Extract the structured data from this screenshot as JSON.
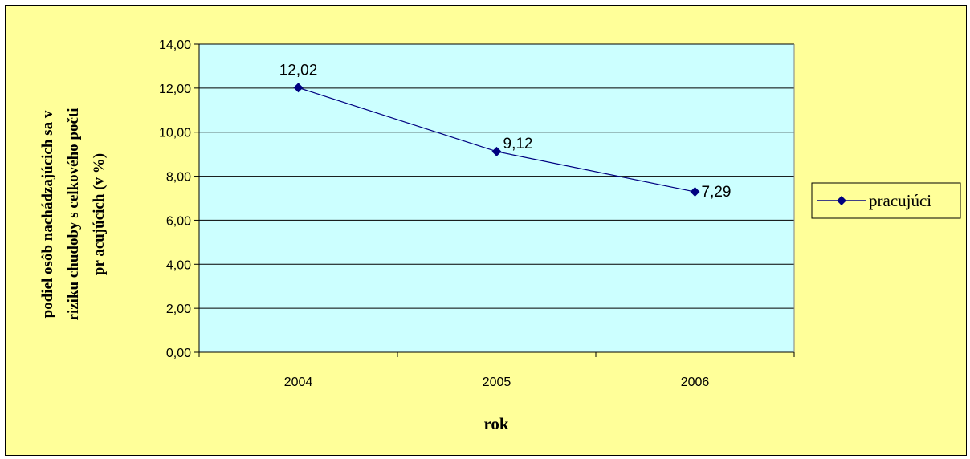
{
  "chart_data": {
    "type": "line",
    "title": "",
    "xlabel": "rok",
    "ylabel_lines": [
      "podiel osôb nachádzajúcich sa v",
      "riziku chudoby s celkového počti",
      "pr acujúcich (v %)"
    ],
    "categories": [
      "2004",
      "2005",
      "2006"
    ],
    "series": [
      {
        "name": "pracujúci",
        "values": [
          12.02,
          9.12,
          7.29
        ],
        "data_labels": [
          "12,02",
          "9,12",
          "7,29"
        ]
      }
    ],
    "ylim": [
      0,
      14
    ],
    "y_ticks": [
      "0,00",
      "2,00",
      "4,00",
      "6,00",
      "8,00",
      "10,00",
      "12,00",
      "14,00"
    ],
    "grid": true,
    "legend": "right",
    "colors": {
      "chart_background": "#ffff99",
      "plot_background": "#ccffff",
      "series_line": "#000080",
      "gridline": "#000000"
    }
  }
}
